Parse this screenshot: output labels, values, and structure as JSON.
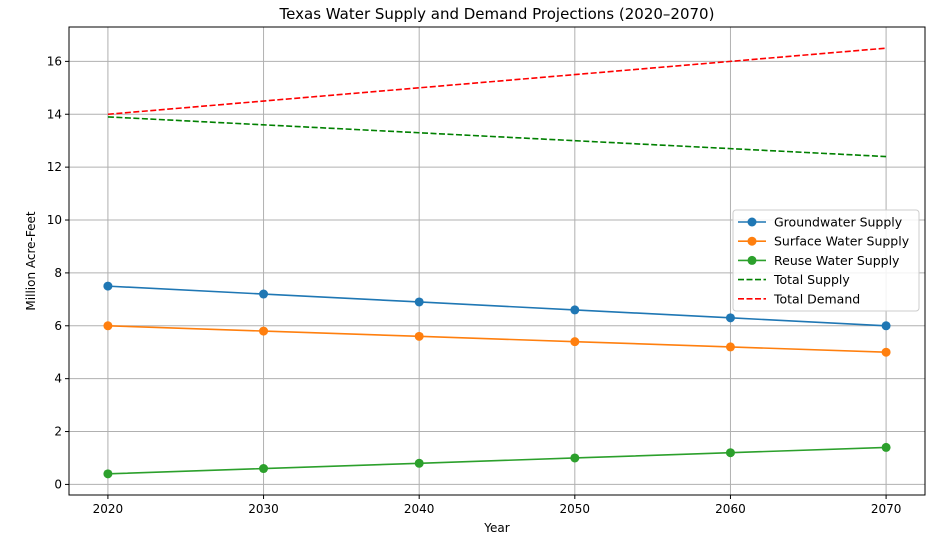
{
  "chart_data": {
    "type": "line",
    "title": "Texas Water Supply and Demand Projections (2020–2070)",
    "xlabel": "Year",
    "ylabel": "Million Acre-Feet",
    "x": [
      2020,
      2030,
      2040,
      2050,
      2060,
      2070
    ],
    "xlim": [
      2017.5,
      2072.5
    ],
    "ylim": [
      -0.4,
      17.3
    ],
    "xticks": [
      "2020",
      "2030",
      "2040",
      "2050",
      "2060",
      "2070"
    ],
    "yticks": [
      "0",
      "2",
      "4",
      "6",
      "8",
      "10",
      "12",
      "14",
      "16"
    ],
    "grid": true,
    "legend_position": "center-right",
    "series": [
      {
        "name": "Groundwater Supply",
        "values": [
          7.5,
          7.2,
          6.9,
          6.6,
          6.3,
          6.0
        ],
        "color": "#1f77b4",
        "style": "solid",
        "marker": "circle"
      },
      {
        "name": "Surface Water Supply",
        "values": [
          6.0,
          5.8,
          5.6,
          5.4,
          5.2,
          5.0
        ],
        "color": "#ff7f0e",
        "style": "solid",
        "marker": "circle"
      },
      {
        "name": "Reuse Water Supply",
        "values": [
          0.4,
          0.6,
          0.8,
          1.0,
          1.2,
          1.4
        ],
        "color": "#2ca02c",
        "style": "solid",
        "marker": "circle"
      },
      {
        "name": "Total Supply",
        "values": [
          13.9,
          13.6,
          13.3,
          13.0,
          12.7,
          12.4
        ],
        "color": "#008000",
        "style": "dashed",
        "marker": "none"
      },
      {
        "name": "Total Demand",
        "values": [
          14.0,
          14.5,
          15.0,
          15.5,
          16.0,
          16.5
        ],
        "color": "#ff0000",
        "style": "dashed",
        "marker": "none"
      }
    ]
  }
}
